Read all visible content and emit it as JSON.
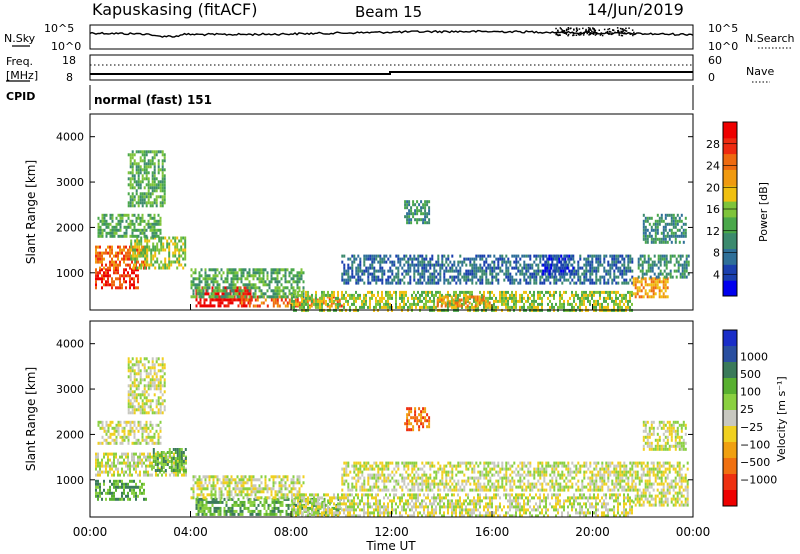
{
  "header": {
    "station": "Kapuskasing (fitACF)",
    "beam": "Beam 15",
    "date": "14/Jun/2019"
  },
  "noise_panel": {
    "left_label": "N.Sky",
    "right_label": "N.Search",
    "left_ticks": [
      "10^5",
      "10^0"
    ],
    "right_ticks": [
      "10^5",
      "10^0"
    ]
  },
  "freq_panel": {
    "left_label_1": "Freq.",
    "left_label_2": "[MHz]",
    "right_label": "Nave",
    "left_ticks": [
      "18",
      "8"
    ],
    "right_ticks": [
      "60",
      "0"
    ]
  },
  "cpid_panel": {
    "label": "CPID",
    "text": "normal (fast) 151"
  },
  "colors": {
    "power_scale": [
      "#0000ee",
      "#1a3fae",
      "#2e6f98",
      "#3c8a6e",
      "#4aa84a",
      "#7ec43a",
      "#f0c010",
      "#f09a10",
      "#ee6a10",
      "#ee2a10",
      "#ee0000"
    ],
    "velocity_scale": [
      "#1a2ec8",
      "#2a4fa0",
      "#3a7a5a",
      "#58b030",
      "#8ad040",
      "#c8c8c0",
      "#f0d020",
      "#f0a010",
      "#f07010",
      "#ee3010",
      "#ee0000"
    ]
  },
  "chart_data": [
    {
      "type": "heatmap",
      "name": "power",
      "ylabel": "Slant Range [km]",
      "y_ticks": [
        "1000",
        "2000",
        "3000",
        "4000"
      ],
      "y_tick_values": [
        1000,
        2000,
        3000,
        4000
      ],
      "ylim": [
        180,
        4500
      ],
      "xlim": [
        0,
        24
      ],
      "colorbar_label": "Power [dB]",
      "colorbar_ticks": [
        "4",
        "8",
        "12",
        "16",
        "20",
        "24",
        "28"
      ],
      "colorbar_values": [
        4,
        8,
        12,
        16,
        20,
        24,
        28
      ],
      "colorbar_range": [
        0,
        32
      ],
      "regions": [
        {
          "t": [
            0.2,
            1.9
          ],
          "r": [
            700,
            1100
          ],
          "level": 9
        },
        {
          "t": [
            0.2,
            2.2
          ],
          "r": [
            1100,
            1600
          ],
          "level": 8
        },
        {
          "t": [
            1.6,
            3.8
          ],
          "r": [
            1100,
            1800
          ],
          "level": 5
        },
        {
          "t": [
            0.3,
            2.8
          ],
          "r": [
            1800,
            2300
          ],
          "level": 4
        },
        {
          "t": [
            1.5,
            3.0
          ],
          "r": [
            2500,
            3700
          ],
          "level": 4
        },
        {
          "t": [
            4.2,
            6.4
          ],
          "r": [
            250,
            700
          ],
          "level": 10
        },
        {
          "t": [
            6.0,
            10.0
          ],
          "r": [
            250,
            500
          ],
          "level": 8
        },
        {
          "t": [
            4.0,
            8.5
          ],
          "r": [
            500,
            1100
          ],
          "level": 4
        },
        {
          "t": [
            8.0,
            21.6
          ],
          "r": [
            200,
            600
          ],
          "level": 5
        },
        {
          "t": [
            10.0,
            21.6
          ],
          "r": [
            800,
            1400
          ],
          "level": 2
        },
        {
          "t": [
            13.8,
            16.0
          ],
          "r": [
            250,
            500
          ],
          "level": 7
        },
        {
          "t": [
            21.6,
            23.0
          ],
          "r": [
            450,
            900
          ],
          "level": 7
        },
        {
          "t": [
            21.8,
            23.8
          ],
          "r": [
            900,
            1400
          ],
          "level": 3
        },
        {
          "t": [
            12.5,
            13.5
          ],
          "r": [
            2100,
            2600
          ],
          "level": 3
        },
        {
          "t": [
            22.0,
            23.7
          ],
          "r": [
            1700,
            2300
          ],
          "level": 3
        },
        {
          "t": [
            18.0,
            19.2
          ],
          "r": [
            1000,
            1400
          ],
          "level": 1
        }
      ]
    },
    {
      "type": "heatmap",
      "name": "velocity",
      "ylabel": "Slant Range [km]",
      "y_ticks": [
        "1000",
        "2000",
        "3000",
        "4000"
      ],
      "y_tick_values": [
        1000,
        2000,
        3000,
        4000
      ],
      "ylim": [
        180,
        4500
      ],
      "xlim": [
        0,
        24
      ],
      "xlabel": "Time UT",
      "x_ticks": [
        "00:00",
        "04:00",
        "08:00",
        "12:00",
        "16:00",
        "20:00",
        "00:00"
      ],
      "x_tick_values": [
        0,
        4,
        8,
        12,
        16,
        20,
        24
      ],
      "colorbar_label": "Velocity [m s⁻¹]",
      "colorbar_ticks": [
        "1000",
        "500",
        "100",
        "25",
        "−25",
        "−100",
        "−500",
        "−1000"
      ],
      "colorbar_values": [
        1000,
        500,
        100,
        25,
        -25,
        -100,
        -500,
        -1000
      ],
      "regions": [
        {
          "t": [
            0.2,
            2.2
          ],
          "r": [
            600,
            1000
          ],
          "level": 3
        },
        {
          "t": [
            0.2,
            3.8
          ],
          "r": [
            1100,
            1600
          ],
          "level": 5
        },
        {
          "t": [
            2.5,
            3.8
          ],
          "r": [
            1200,
            1700
          ],
          "level": 3
        },
        {
          "t": [
            0.3,
            2.8
          ],
          "r": [
            1800,
            2300
          ],
          "level": 5
        },
        {
          "t": [
            1.5,
            3.0
          ],
          "r": [
            2500,
            3700
          ],
          "level": 5
        },
        {
          "t": [
            4.2,
            10.0
          ],
          "r": [
            250,
            600
          ],
          "level": 3
        },
        {
          "t": [
            4.0,
            8.5
          ],
          "r": [
            600,
            1100
          ],
          "level": 5
        },
        {
          "t": [
            8.0,
            21.6
          ],
          "r": [
            200,
            700
          ],
          "level": 5
        },
        {
          "t": [
            10.0,
            21.6
          ],
          "r": [
            800,
            1400
          ],
          "level": 5
        },
        {
          "t": [
            21.6,
            23.8
          ],
          "r": [
            450,
            1400
          ],
          "level": 5
        },
        {
          "t": [
            12.5,
            13.5
          ],
          "r": [
            2100,
            2600
          ],
          "level": 8
        },
        {
          "t": [
            22.0,
            23.7
          ],
          "r": [
            1700,
            2300
          ],
          "level": 5
        }
      ]
    }
  ]
}
